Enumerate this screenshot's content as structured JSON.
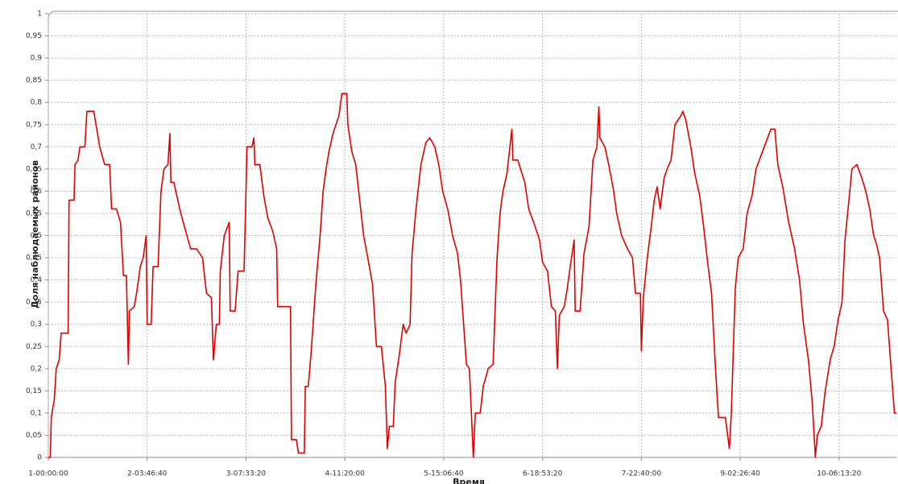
{
  "chart_data": {
    "type": "line",
    "ylabel": "Доля наблюдаемых районов",
    "xlabel": "Время",
    "color": "#e00000",
    "grid": true,
    "xlim": [
      0,
      858000
    ],
    "ylim": [
      0,
      1
    ],
    "xticks": [
      {
        "value": 0,
        "label": "1-00:00:00"
      },
      {
        "value": 100000,
        "label": "2-03:46:40"
      },
      {
        "value": 200000,
        "label": "3-07:33:20"
      },
      {
        "value": 300000,
        "label": "4-11:20:00"
      },
      {
        "value": 400000,
        "label": "5-15:06:40"
      },
      {
        "value": 500000,
        "label": "6-18:53:20"
      },
      {
        "value": 600000,
        "label": "7-22:40:00"
      },
      {
        "value": 700000,
        "label": "9-02:26:40"
      },
      {
        "value": 800000,
        "label": "10-06:13:20"
      }
    ],
    "yticks": [
      0,
      {
        "value": 0.05,
        "label": "0,05"
      },
      {
        "value": 0.1,
        "label": "0,1"
      },
      {
        "value": 0.15,
        "label": "0,15"
      },
      {
        "value": 0.2,
        "label": "0,2"
      },
      {
        "value": 0.25,
        "label": "0,25"
      },
      {
        "value": 0.3,
        "label": "0,3"
      },
      {
        "value": 0.35,
        "label": "0,35"
      },
      {
        "value": 0.4,
        "label": "0,4"
      },
      {
        "value": 0.45,
        "label": "0,45"
      },
      {
        "value": 0.5,
        "label": "0,5"
      },
      {
        "value": 0.55,
        "label": "0,55"
      },
      {
        "value": 0.6,
        "label": "0,6"
      },
      {
        "value": 0.65,
        "label": "0,65"
      },
      {
        "value": 0.7,
        "label": "0,7"
      },
      {
        "value": 0.75,
        "label": "0,75"
      },
      {
        "value": 0.8,
        "label": "0,8"
      },
      {
        "value": 0.85,
        "label": "0,85"
      },
      {
        "value": 0.9,
        "label": "0,9"
      },
      {
        "value": 0.95,
        "label": "0,95"
      },
      1
    ],
    "x": [
      0,
      2000,
      3000,
      6000,
      8000,
      11000,
      13000,
      20000,
      21000,
      26000,
      27000,
      30000,
      32000,
      37000,
      39000,
      46000,
      49000,
      52000,
      57000,
      62000,
      64000,
      69000,
      73000,
      76000,
      79000,
      81000,
      82000,
      87000,
      90000,
      93000,
      96000,
      99000,
      100000,
      104000,
      106000,
      111000,
      114000,
      117000,
      121000,
      123000,
      124000,
      127000,
      130000,
      134000,
      139000,
      144000,
      150000,
      156000,
      160000,
      165000,
      167000,
      170000,
      173000,
      174000,
      176000,
      178000,
      183000,
      184000,
      189000,
      192000,
      198000,
      200000,
      201000,
      206000,
      208000,
      209000,
      214000,
      218000,
      222000,
      227000,
      231000,
      232000,
      245000,
      246000,
      251000,
      253000,
      259000,
      260000,
      263000,
      266000,
      271000,
      275000,
      278000,
      281000,
      284000,
      288000,
      291000,
      294000,
      297000,
      302000,
      303000,
      307000,
      311000,
      315000,
      319000,
      324000,
      328000,
      332000,
      337000,
      341000,
      343000,
      345000,
      349000,
      351000,
      355000,
      359000,
      362000,
      366000,
      368000,
      372000,
      377000,
      382000,
      386000,
      391000,
      395000,
      399000,
      404000,
      409000,
      414000,
      417000,
      423000,
      426000,
      430000,
      432000,
      437000,
      440000,
      445000,
      450000,
      454000,
      457000,
      460000,
      464000,
      469000,
      470000,
      475000,
      482000,
      486000,
      491000,
      497000,
      500000,
      505000,
      509000,
      513000,
      515000,
      517000,
      522000,
      525000,
      528000,
      532000,
      533000,
      538000,
      542000,
      547000,
      551000,
      555000,
      557000,
      558000,
      563000,
      567000,
      572000,
      575000,
      580000,
      586000,
      591000,
      594000,
      599000,
      600000,
      602000,
      606000,
      610000,
      613000,
      616000,
      619000,
      623000,
      626000,
      630000,
      634000,
      640000,
      642000,
      645000,
      650000,
      654000,
      659000,
      663000,
      667000,
      671000,
      675000,
      678000,
      685000,
      689000,
      691000,
      695000,
      698000,
      703000,
      707000,
      712000,
      716000,
      721000,
      726000,
      731000,
      735000,
      738000,
      743000,
      749000,
      755000,
      760000,
      764000,
      769000,
      773000,
      776000,
      778000,
      782000,
      786000,
      791000,
      795000,
      799000,
      803000,
      806000,
      810000,
      813000,
      818000,
      823000,
      827000,
      831000,
      835000,
      838000,
      841000,
      845000,
      849000,
      852000,
      856000,
      858000
    ],
    "values": [
      0,
      0,
      0.09,
      0.13,
      0.2,
      0.22,
      0.28,
      0.28,
      0.58,
      0.58,
      0.66,
      0.67,
      0.7,
      0.7,
      0.78,
      0.78,
      0.74,
      0.7,
      0.66,
      0.66,
      0.56,
      0.56,
      0.53,
      0.41,
      0.41,
      0.21,
      0.33,
      0.34,
      0.38,
      0.43,
      0.45,
      0.5,
      0.3,
      0.3,
      0.43,
      0.43,
      0.6,
      0.65,
      0.66,
      0.73,
      0.62,
      0.62,
      0.59,
      0.55,
      0.51,
      0.47,
      0.47,
      0.45,
      0.37,
      0.36,
      0.22,
      0.3,
      0.3,
      0.42,
      0.46,
      0.5,
      0.53,
      0.33,
      0.33,
      0.42,
      0.42,
      0.6,
      0.7,
      0.7,
      0.72,
      0.66,
      0.66,
      0.59,
      0.54,
      0.51,
      0.47,
      0.34,
      0.34,
      0.04,
      0.04,
      0.01,
      0.01,
      0.16,
      0.16,
      0.24,
      0.4,
      0.5,
      0.6,
      0.65,
      0.69,
      0.73,
      0.75,
      0.77,
      0.82,
      0.82,
      0.75,
      0.69,
      0.66,
      0.58,
      0.5,
      0.44,
      0.39,
      0.25,
      0.25,
      0.16,
      0.02,
      0.07,
      0.07,
      0.17,
      0.23,
      0.3,
      0.28,
      0.3,
      0.46,
      0.56,
      0.66,
      0.71,
      0.72,
      0.7,
      0.66,
      0.6,
      0.56,
      0.5,
      0.46,
      0.4,
      0.21,
      0.2,
      0,
      0.1,
      0.1,
      0.16,
      0.2,
      0.21,
      0.45,
      0.55,
      0.6,
      0.64,
      0.74,
      0.67,
      0.67,
      0.62,
      0.56,
      0.53,
      0.49,
      0.44,
      0.42,
      0.34,
      0.33,
      0.2,
      0.32,
      0.34,
      0.38,
      0.43,
      0.49,
      0.33,
      0.33,
      0.46,
      0.52,
      0.67,
      0.7,
      0.79,
      0.72,
      0.7,
      0.66,
      0.6,
      0.55,
      0.5,
      0.47,
      0.45,
      0.37,
      0.37,
      0.24,
      0.36,
      0.45,
      0.52,
      0.58,
      0.61,
      0.56,
      0.63,
      0.65,
      0.67,
      0.75,
      0.77,
      0.78,
      0.76,
      0.7,
      0.64,
      0.59,
      0.52,
      0.44,
      0.37,
      0.2,
      0.09,
      0.09,
      0.02,
      0.1,
      0.38,
      0.45,
      0.47,
      0.55,
      0.59,
      0.65,
      0.68,
      0.71,
      0.74,
      0.74,
      0.66,
      0.61,
      0.53,
      0.47,
      0.4,
      0.3,
      0.22,
      0.12,
      0,
      0.05,
      0.07,
      0.15,
      0.22,
      0.25,
      0.31,
      0.35,
      0.49,
      0.58,
      0.65,
      0.66,
      0.63,
      0.6,
      0.56,
      0.5,
      0.48,
      0.45,
      0.33,
      0.31,
      0.22,
      0.1,
      0.1
    ]
  }
}
